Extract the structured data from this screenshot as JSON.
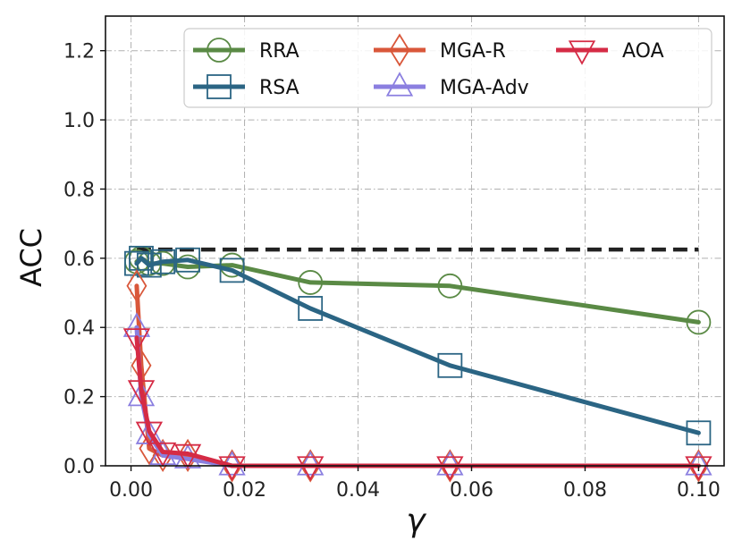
{
  "chart_data": {
    "type": "line",
    "xlabel": "γ",
    "ylabel": "ACC",
    "xlim": [
      -0.0045,
      0.1045
    ],
    "ylim": [
      0.0,
      1.3
    ],
    "xticks": [
      0.0,
      0.02,
      0.04,
      0.06,
      0.08,
      0.1
    ],
    "xtick_labels": [
      "0.00",
      "0.02",
      "0.04",
      "0.06",
      "0.08",
      "0.10"
    ],
    "yticks": [
      0.0,
      0.2,
      0.4,
      0.6,
      0.8,
      1.0,
      1.2
    ],
    "ytick_labels": [
      "0.0",
      "0.2",
      "0.4",
      "0.6",
      "0.8",
      "1.0",
      "1.2"
    ],
    "grid": true,
    "legend_position": "top",
    "reference_line": {
      "y": 0.625,
      "x_start": 0.001,
      "x_end": 0.1,
      "style": "dashed",
      "color": "#222222"
    },
    "series": [
      {
        "name": "RRA",
        "color": "#5a8a45",
        "marker": "circle",
        "x": [
          0.001,
          0.0018,
          0.0032,
          0.0056,
          0.01,
          0.0178,
          0.0316,
          0.0562,
          0.1
        ],
        "y": [
          0.59,
          0.6,
          0.585,
          0.585,
          0.575,
          0.58,
          0.53,
          0.52,
          0.415
        ]
      },
      {
        "name": "RSA",
        "color": "#2b6584",
        "marker": "square",
        "x": [
          0.001,
          0.0018,
          0.0032,
          0.0056,
          0.01,
          0.0178,
          0.0316,
          0.0562,
          0.1
        ],
        "y": [
          0.585,
          0.6,
          0.58,
          0.59,
          0.595,
          0.565,
          0.455,
          0.29,
          0.095
        ]
      },
      {
        "name": "MGA-R",
        "color": "#d9573a",
        "marker": "diamond",
        "x": [
          0.001,
          0.0018,
          0.0032,
          0.0056,
          0.01,
          0.0178,
          0.0316,
          0.0562,
          0.1
        ],
        "y": [
          0.52,
          0.29,
          0.05,
          0.03,
          0.03,
          0.0,
          0.0,
          0.0,
          0.0
        ]
      },
      {
        "name": "MGA-Adv",
        "color": "#8b7fe0",
        "marker": "triangle-up",
        "x": [
          0.001,
          0.0018,
          0.0032,
          0.0056,
          0.01,
          0.0178,
          0.0316,
          0.0562,
          0.1
        ],
        "y": [
          0.4,
          0.2,
          0.09,
          0.03,
          0.02,
          0.0,
          0.0,
          0.0,
          0.0
        ]
      },
      {
        "name": "AOA",
        "color": "#d52b45",
        "marker": "triangle-down",
        "x": [
          0.001,
          0.0018,
          0.0032,
          0.0056,
          0.01,
          0.0178,
          0.0316,
          0.0562,
          0.1
        ],
        "y": [
          0.37,
          0.22,
          0.1,
          0.04,
          0.035,
          0.0,
          0.0,
          0.0,
          0.0
        ]
      }
    ]
  }
}
